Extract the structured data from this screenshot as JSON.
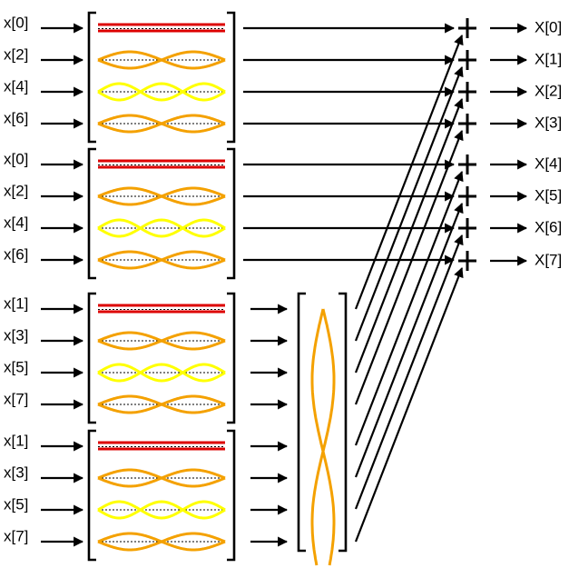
{
  "colors": {
    "dc": "#dd0000",
    "mid": "#f4a100",
    "high": "#ffff00",
    "ink": "#000000",
    "background": "#ffffff"
  },
  "blocks": [
    {
      "inputs": [
        "x[0]",
        "x[2]",
        "x[4]",
        "x[6]"
      ]
    },
    {
      "inputs": [
        "x[0]",
        "x[2]",
        "x[4]",
        "x[6]"
      ]
    },
    {
      "inputs": [
        "x[1]",
        "x[3]",
        "x[5]",
        "x[7]"
      ]
    },
    {
      "inputs": [
        "x[1]",
        "x[3]",
        "x[5]",
        "x[7]"
      ]
    }
  ],
  "outputs": [
    "X[0]",
    "X[1]",
    "X[2]",
    "X[3]",
    "X[4]",
    "X[5]",
    "X[6]",
    "X[7]"
  ],
  "icons": {
    "adder": "plus-icon",
    "arrow": "arrow-icon"
  }
}
